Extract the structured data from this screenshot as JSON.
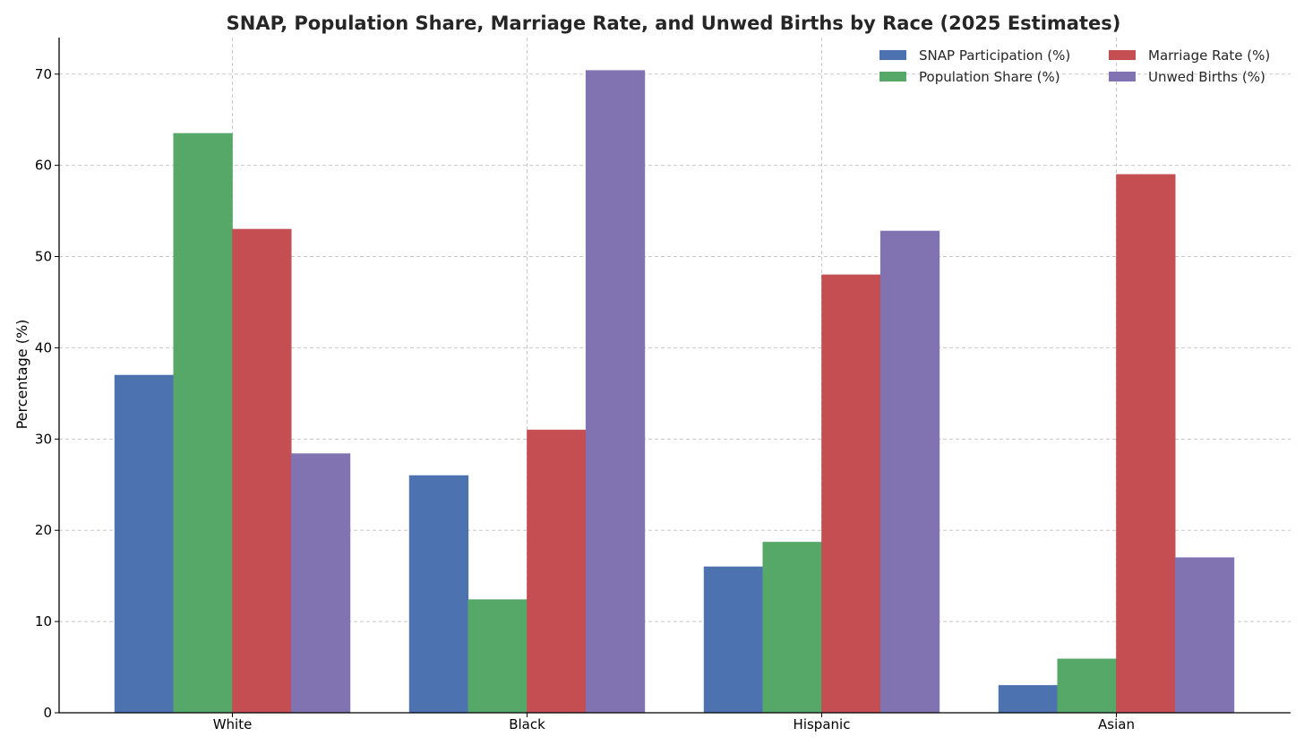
{
  "chart_data": {
    "type": "bar",
    "title": "SNAP, Population Share, Marriage Rate, and Unwed Births by Race (2025 Estimates)",
    "xlabel": "",
    "ylabel": "Percentage (%)",
    "categories": [
      "White",
      "Black",
      "Hispanic",
      "Asian"
    ],
    "ylim": [
      0,
      74
    ],
    "yticks": [
      0,
      10,
      20,
      30,
      40,
      50,
      60,
      70
    ],
    "grid": true,
    "legend_position": "top-right",
    "series": [
      {
        "name": "SNAP Participation (%)",
        "color": "#4c72b0",
        "values": [
          37,
          26,
          16,
          3
        ]
      },
      {
        "name": "Population Share (%)",
        "color": "#55a868",
        "values": [
          63.5,
          12.4,
          18.7,
          5.9
        ]
      },
      {
        "name": "Marriage Rate (%)",
        "color": "#c44e52",
        "values": [
          53,
          31,
          48,
          59
        ]
      },
      {
        "name": "Unwed Births (%)",
        "color": "#8172b2",
        "values": [
          28.4,
          70.4,
          52.8,
          17
        ]
      }
    ]
  }
}
